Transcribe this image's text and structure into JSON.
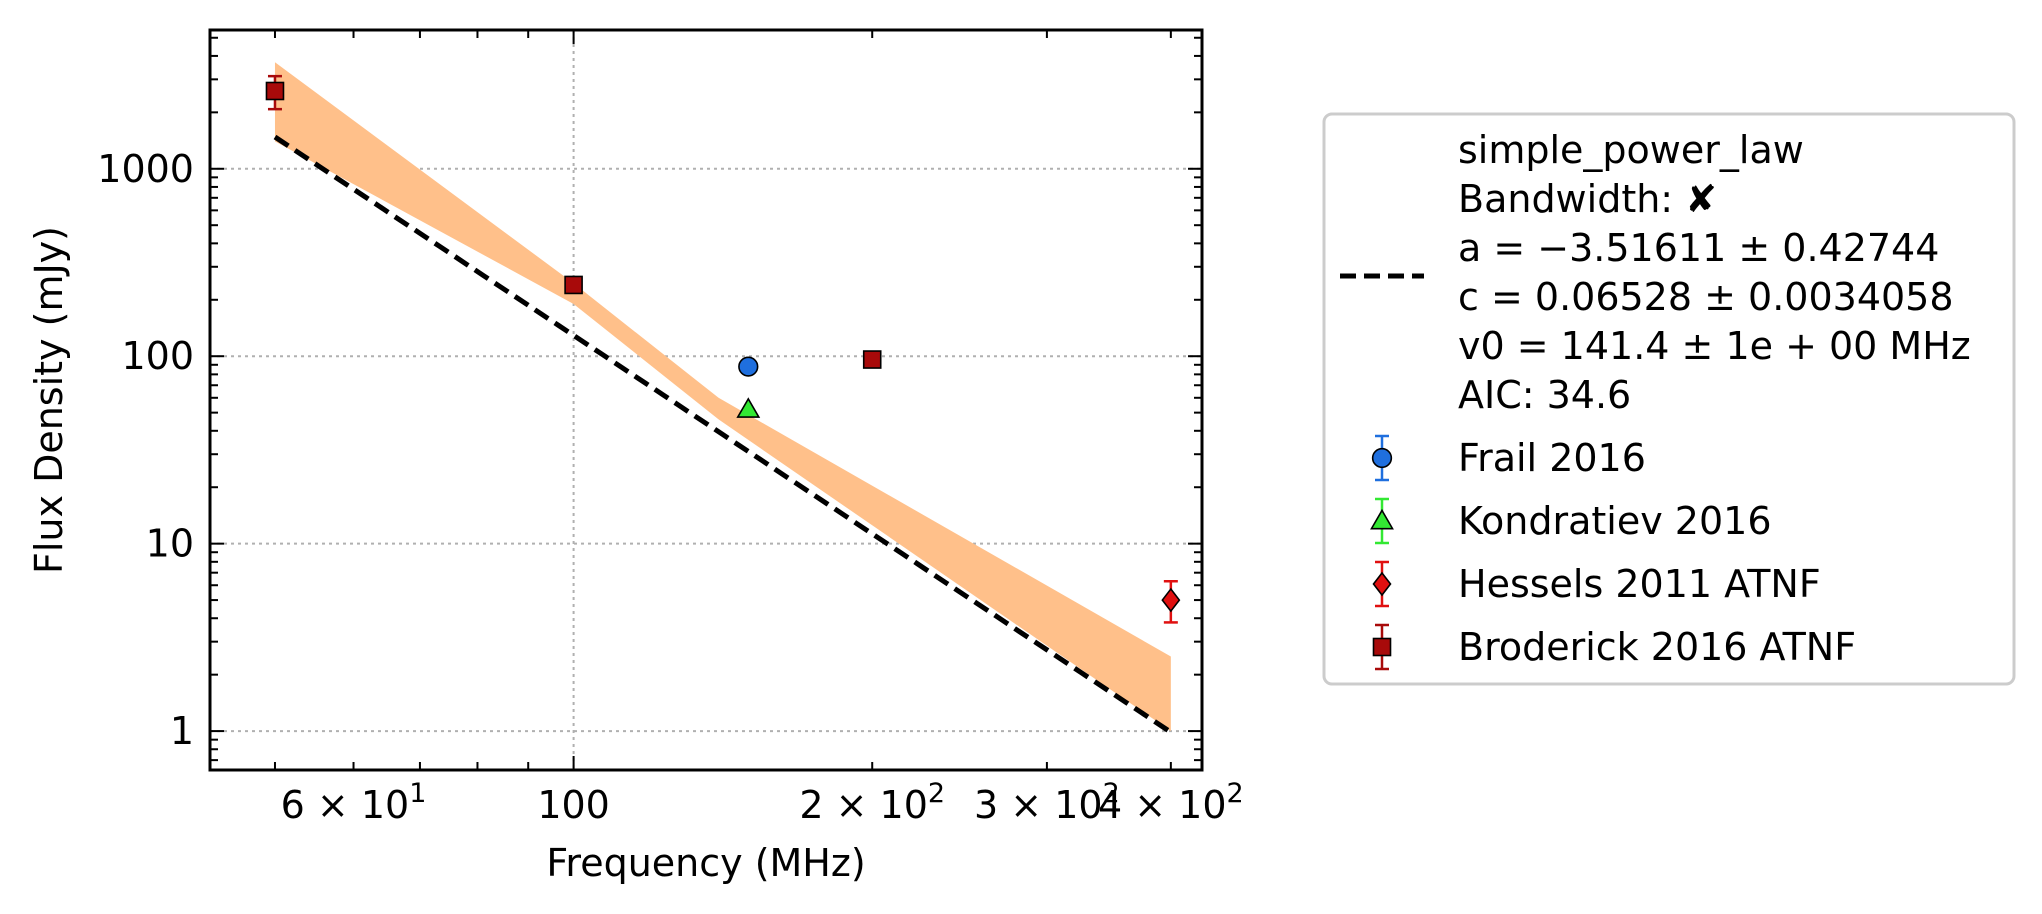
{
  "chart_data": {
    "type": "scatter",
    "title": "",
    "xlabel": "Frequency (MHz)",
    "ylabel": "Flux Density (mJy)",
    "xscale": "log",
    "yscale": "log",
    "xlim": [
      43,
      430
    ],
    "ylim": [
      0.62,
      5500
    ],
    "grid": true,
    "legend_placement": "outside-right",
    "x_ticks": [
      {
        "value": 60,
        "label": "6 × 10",
        "exp": "1"
      },
      {
        "value": 100,
        "label": "100",
        "exp": ""
      },
      {
        "value": 200,
        "label": "2 × 10",
        "exp": "2"
      },
      {
        "value": 300,
        "label": "3 × 10",
        "exp": "2"
      },
      {
        "value": 400,
        "label": "4 × 10",
        "exp": "2"
      }
    ],
    "y_ticks": [
      {
        "value": 1,
        "label": "1"
      },
      {
        "value": 10,
        "label": "10"
      },
      {
        "value": 100,
        "label": "100"
      },
      {
        "value": 1000,
        "label": "1000"
      }
    ],
    "fit": {
      "name": "simple_power_law",
      "legend_lines": [
        "simple_power_law",
        "Bandwidth: ✘",
        "a = −3.51611 ± 0.42744",
        "c = 0.06528 ± 0.0034058",
        "v0 = 141.4 ± 1e + 00 MHz",
        "AIC: 34.6"
      ],
      "a": -3.51611,
      "v0": 141.4,
      "s0": 38.2,
      "x_range": [
        50,
        400
      ],
      "band_lower_ends": [
        1400,
        1.0
      ],
      "band_upper_ends": [
        3700,
        2.5
      ],
      "line_color": "#000000",
      "band_color": "#ffc08a"
    },
    "series": [
      {
        "name": "Frail 2016",
        "marker": "circle",
        "face": "#1f6fde",
        "err": "#1f6fde",
        "points": [
          {
            "x": 150,
            "y": 88,
            "yerr_low": 88,
            "yerr_high": 88
          }
        ]
      },
      {
        "name": "Kondratiev 2016",
        "marker": "triangle",
        "face": "#33e833",
        "err": "#33e833",
        "points": [
          {
            "x": 150,
            "y": 52,
            "yerr_low": 52,
            "yerr_high": 52
          }
        ]
      },
      {
        "name": "Hessels 2011 ATNF",
        "marker": "diamond",
        "face": "#e01010",
        "err": "#e01010",
        "points": [
          {
            "x": 400,
            "y": 5.0,
            "yerr_low": 3.8,
            "yerr_high": 6.3
          }
        ]
      },
      {
        "name": "Broderick 2016 ATNF",
        "marker": "square",
        "face": "#a80a0a",
        "err": "#a80a0a",
        "points": [
          {
            "x": 50,
            "y": 2600,
            "yerr_low": 2080,
            "yerr_high": 3120
          },
          {
            "x": 100,
            "y": 240,
            "yerr_low": 235,
            "yerr_high": 245
          },
          {
            "x": 200,
            "y": 96,
            "yerr_low": 95,
            "yerr_high": 97
          }
        ]
      }
    ]
  }
}
